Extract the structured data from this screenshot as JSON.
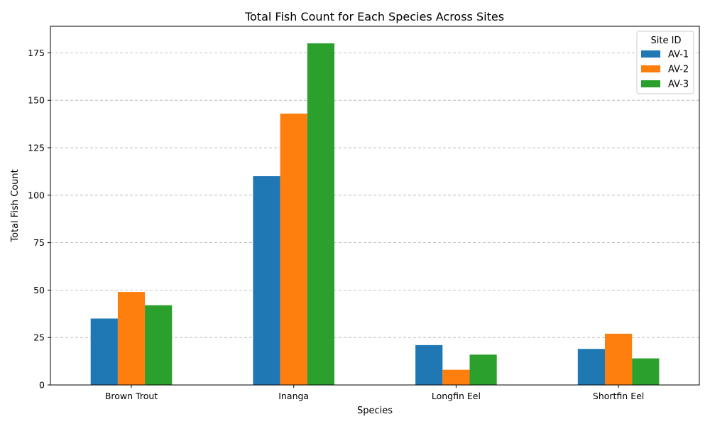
{
  "chart_data": {
    "type": "bar",
    "title": "Total Fish Count for Each Species Across Sites",
    "xlabel": "Species",
    "ylabel": "Total Fish Count",
    "categories": [
      "Brown Trout",
      "Inanga",
      "Longfin Eel",
      "Shortfin Eel"
    ],
    "series": [
      {
        "name": "AV-1",
        "color": "#1f77b4",
        "values": [
          35,
          110,
          21,
          19
        ]
      },
      {
        "name": "AV-2",
        "color": "#ff7f0e",
        "values": [
          49,
          143,
          8,
          27
        ]
      },
      {
        "name": "AV-3",
        "color": "#2ca02c",
        "values": [
          42,
          180,
          16,
          14
        ]
      }
    ],
    "ylim": [
      0,
      189
    ],
    "yticks": [
      0,
      25,
      50,
      75,
      100,
      125,
      150,
      175
    ],
    "grid": "y-dashed",
    "legend": {
      "title": "Site ID",
      "placement": "top-right"
    }
  }
}
